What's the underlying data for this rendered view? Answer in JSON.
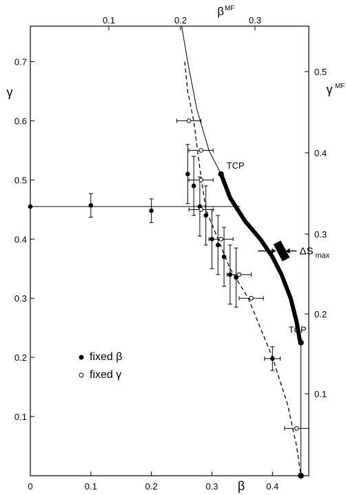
{
  "chart_data": {
    "type": "scatter",
    "x": {
      "label": "β",
      "range": [
        0,
        0.46
      ],
      "ticks": [
        0,
        0.1,
        0.2,
        0.3,
        0.4
      ],
      "tick_labels": [
        "0",
        "0.1",
        "0.2",
        "0.3",
        "0.4"
      ]
    },
    "y": {
      "label": "γ",
      "range": [
        0,
        0.76
      ],
      "ticks": [
        0.1,
        0.2,
        0.3,
        0.4,
        0.5,
        0.6,
        0.7
      ],
      "tick_labels": [
        "0.1",
        "0.2",
        "0.3",
        "0.4",
        "0.5",
        "0.6",
        "0.7"
      ]
    },
    "x_top": {
      "label": "β",
      "label_sup": "MF",
      "ticks": [
        0.1,
        0.2,
        0.3
      ],
      "tick_labels": [
        "0.1",
        "0.2",
        "0.3"
      ]
    },
    "y_right": {
      "label": "γ",
      "label_sup": "MF",
      "ticks": [
        0.1,
        0.2,
        0.3,
        0.4,
        0.5
      ],
      "tick_labels": [
        "0.1",
        "0.2",
        "0.3",
        "0.4",
        "0.5"
      ]
    },
    "series": [
      {
        "name": "fixed β",
        "marker": "filled",
        "points": [
          {
            "x": 0.0,
            "y": 0.455,
            "xerr": 0,
            "yerr": 0
          },
          {
            "x": 0.1,
            "y": 0.457,
            "xerr": 0,
            "yerr": 0.02
          },
          {
            "x": 0.2,
            "y": 0.448,
            "xerr": 0,
            "yerr": 0.02
          },
          {
            "x": 0.26,
            "y": 0.51,
            "xerr": 0,
            "yerr": 0.05
          },
          {
            "x": 0.27,
            "y": 0.49,
            "xerr": 0,
            "yerr": 0.05
          },
          {
            "x": 0.28,
            "y": 0.455,
            "xerr": 0,
            "yerr": 0.05
          },
          {
            "x": 0.29,
            "y": 0.44,
            "xerr": 0,
            "yerr": 0.05
          },
          {
            "x": 0.3,
            "y": 0.4,
            "xerr": 0,
            "yerr": 0.05
          },
          {
            "x": 0.31,
            "y": 0.39,
            "xerr": 0,
            "yerr": 0.05
          },
          {
            "x": 0.32,
            "y": 0.37,
            "xerr": 0,
            "yerr": 0.05
          },
          {
            "x": 0.33,
            "y": 0.34,
            "xerr": 0,
            "yerr": 0.05
          },
          {
            "x": 0.34,
            "y": 0.335,
            "xerr": 0,
            "yerr": 0.05
          },
          {
            "x": 0.4,
            "y": 0.198,
            "xerr": 0.013,
            "yerr": 0.02
          }
        ]
      },
      {
        "name": "fixed γ",
        "marker": "open",
        "points": [
          {
            "x": 0.262,
            "y": 0.6,
            "xerr": 0.02,
            "yerr": 0
          },
          {
            "x": 0.282,
            "y": 0.55,
            "xerr": 0.02,
            "yerr": 0
          },
          {
            "x": 0.282,
            "y": 0.5,
            "xerr": 0.02,
            "yerr": 0
          },
          {
            "x": 0.282,
            "y": 0.45,
            "xerr": 0.02,
            "yerr": 0
          },
          {
            "x": 0.315,
            "y": 0.4,
            "xerr": 0.02,
            "yerr": 0
          },
          {
            "x": 0.345,
            "y": 0.34,
            "xerr": 0.02,
            "yerr": 0
          },
          {
            "x": 0.365,
            "y": 0.3,
            "xerr": 0.02,
            "yerr": 0
          },
          {
            "x": 0.44,
            "y": 0.08,
            "xerr": 0.02,
            "yerr": 0
          }
        ]
      }
    ],
    "lines": {
      "horizontal": {
        "x": [
          0,
          0.29
        ],
        "y": 0.455
      },
      "dashed": [
        [
          0.255,
          0.7
        ],
        [
          0.26,
          0.65
        ],
        [
          0.27,
          0.6
        ],
        [
          0.28,
          0.52
        ],
        [
          0.29,
          0.45
        ],
        [
          0.31,
          0.4
        ],
        [
          0.33,
          0.35
        ],
        [
          0.36,
          0.3
        ],
        [
          0.38,
          0.25
        ],
        [
          0.4,
          0.2
        ],
        [
          0.425,
          0.12
        ],
        [
          0.44,
          0.05
        ],
        [
          0.447,
          0.0
        ]
      ],
      "upper_solid": [
        [
          0.25,
          0.76
        ],
        [
          0.26,
          0.7
        ],
        [
          0.275,
          0.62
        ],
        [
          0.295,
          0.55
        ],
        [
          0.315,
          0.51
        ]
      ],
      "thick_solid": [
        [
          0.315,
          0.51
        ],
        [
          0.33,
          0.47
        ],
        [
          0.355,
          0.43
        ],
        [
          0.38,
          0.4
        ],
        [
          0.4,
          0.37
        ],
        [
          0.415,
          0.34
        ],
        [
          0.43,
          0.3
        ],
        [
          0.44,
          0.26
        ],
        [
          0.445,
          0.23
        ],
        [
          0.447,
          0.225
        ]
      ],
      "lower_solid": [
        [
          0.447,
          0.225
        ],
        [
          0.447,
          0.1
        ],
        [
          0.447,
          0.0
        ]
      ]
    },
    "special_points": [
      {
        "x": 0.315,
        "y": 0.51,
        "label": "TCP"
      },
      {
        "x": 0.447,
        "y": 0.225,
        "label": "TCP"
      },
      {
        "x": 0.447,
        "y": 0.0,
        "label": ""
      }
    ],
    "annotation": {
      "text": "ΔS",
      "sub": "max",
      "x": 0.415,
      "y": 0.38
    },
    "legend": [
      {
        "marker": "filled",
        "text": "fixed β"
      },
      {
        "marker": "open",
        "text": "fixed γ"
      }
    ],
    "legend_placement": "bottom-left",
    "grid": false
  }
}
